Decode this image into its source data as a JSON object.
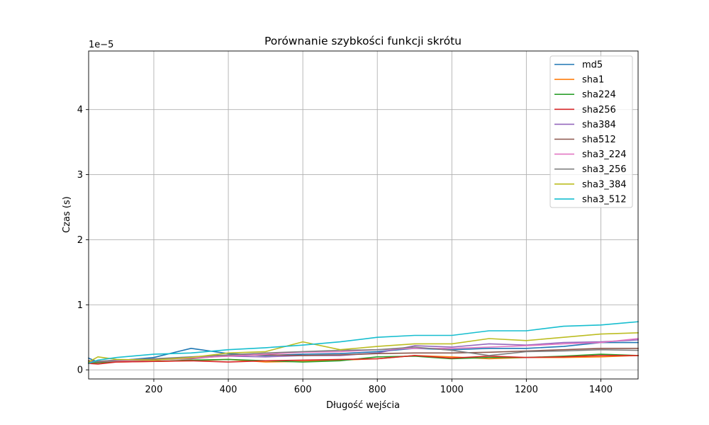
{
  "chart_data": {
    "type": "line",
    "title": "Porównanie szybkości funkcji skrótu",
    "xlabel": "Długość wejścia",
    "ylabel": "Czas (s)",
    "y_scale_label": "1e−5",
    "xlim": [
      25,
      1500
    ],
    "ylim": [
      -0.14,
      4.9
    ],
    "y_unit_multiplier": 1e-05,
    "xticks": [
      200,
      400,
      600,
      800,
      1000,
      1200,
      1400
    ],
    "yticks": [
      0,
      1,
      2,
      3,
      4
    ],
    "xtick_labels": [
      "200",
      "400",
      "600",
      "800",
      "1000",
      "1200",
      "1400"
    ],
    "ytick_labels": [
      "0",
      "1",
      "2",
      "3",
      "4"
    ],
    "grid": true,
    "legend_position": "top-right",
    "x": [
      25,
      50,
      100,
      200,
      300,
      400,
      500,
      600,
      700,
      800,
      900,
      1000,
      1100,
      1200,
      1300,
      1400,
      1500
    ],
    "series": [
      {
        "name": "md5",
        "color": "#1f77b4",
        "values": [
          0.18,
          0.12,
          0.14,
          0.19,
          0.33,
          0.25,
          0.22,
          0.24,
          0.25,
          0.28,
          0.33,
          0.31,
          0.33,
          0.33,
          0.36,
          0.42,
          0.42
        ]
      },
      {
        "name": "sha1",
        "color": "#ff7f0e",
        "values": [
          0.1,
          0.11,
          0.12,
          0.13,
          0.14,
          0.16,
          0.12,
          0.13,
          0.15,
          0.17,
          0.22,
          0.2,
          0.17,
          0.19,
          0.19,
          0.2,
          0.22
        ]
      },
      {
        "name": "sha224",
        "color": "#2ca02c",
        "values": [
          0.11,
          0.11,
          0.13,
          0.13,
          0.15,
          0.16,
          0.14,
          0.12,
          0.14,
          0.2,
          0.21,
          0.17,
          0.19,
          0.19,
          0.21,
          0.24,
          0.22
        ]
      },
      {
        "name": "sha256",
        "color": "#d62728",
        "values": [
          0.1,
          0.09,
          0.12,
          0.13,
          0.14,
          0.12,
          0.14,
          0.15,
          0.16,
          0.17,
          0.22,
          0.18,
          0.21,
          0.19,
          0.2,
          0.22,
          0.22
        ]
      },
      {
        "name": "sha384",
        "color": "#9467bd",
        "values": [
          0.14,
          0.13,
          0.15,
          0.17,
          0.19,
          0.21,
          0.2,
          0.22,
          0.22,
          0.26,
          0.37,
          0.35,
          0.4,
          0.38,
          0.42,
          0.43,
          0.46
        ]
      },
      {
        "name": "sha512",
        "color": "#8c564b",
        "values": [
          0.14,
          0.12,
          0.14,
          0.16,
          0.17,
          0.22,
          0.23,
          0.22,
          0.23,
          0.25,
          0.26,
          0.26,
          0.27,
          0.29,
          0.31,
          0.33,
          0.33
        ]
      },
      {
        "name": "sha3_224",
        "color": "#e377c2",
        "values": [
          0.12,
          0.13,
          0.14,
          0.15,
          0.18,
          0.21,
          0.24,
          0.27,
          0.28,
          0.31,
          0.33,
          0.33,
          0.35,
          0.37,
          0.4,
          0.42,
          0.48
        ]
      },
      {
        "name": "sha3_256",
        "color": "#7f7f7f",
        "values": [
          0.11,
          0.13,
          0.15,
          0.17,
          0.2,
          0.23,
          0.26,
          0.28,
          0.3,
          0.31,
          0.35,
          0.3,
          0.22,
          0.28,
          0.29,
          0.31,
          0.3
        ]
      },
      {
        "name": "sha3_384",
        "color": "#bcbd22",
        "values": [
          0.12,
          0.2,
          0.16,
          0.15,
          0.19,
          0.26,
          0.28,
          0.43,
          0.31,
          0.36,
          0.4,
          0.4,
          0.48,
          0.45,
          0.5,
          0.55,
          0.57
        ]
      },
      {
        "name": "sha3_512",
        "color": "#17becf",
        "values": [
          0.1,
          0.15,
          0.19,
          0.24,
          0.26,
          0.31,
          0.34,
          0.38,
          0.43,
          0.5,
          0.53,
          0.53,
          0.6,
          0.6,
          0.67,
          0.69,
          0.74
        ]
      }
    ]
  }
}
